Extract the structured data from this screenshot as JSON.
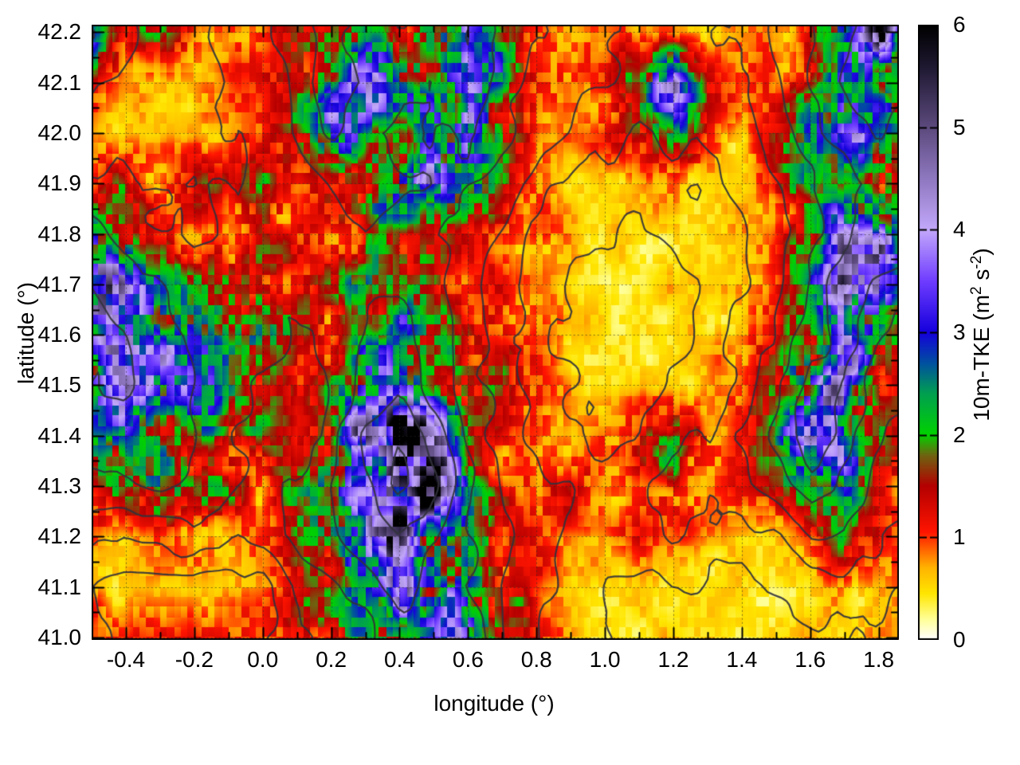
{
  "chart_data": {
    "type": "heatmap",
    "xlabel": "longitude (°)",
    "ylabel": "latitude (°)",
    "colorbar_label": "10m-TKE (m² s⁻²)",
    "colorbar_label_parts": {
      "p1": "10m-TKE (m",
      "sup1": "2",
      "p2": " s",
      "sup2": "-2",
      "p3": ")"
    },
    "xlim": [
      -0.5,
      1.859
    ],
    "ylim": [
      40.995,
      42.215
    ],
    "clim": [
      0,
      6
    ],
    "xticks": {
      "values": [
        -0.4,
        -0.2,
        0.0,
        0.2,
        0.4,
        0.6,
        0.8,
        1.0,
        1.2,
        1.4,
        1.6,
        1.8
      ],
      "labels": [
        "-0.4",
        "-0.2",
        "0.0",
        "0.2",
        "0.4",
        "0.6",
        "0.8",
        "1.0",
        "1.2",
        "1.4",
        "1.6",
        "1.8"
      ]
    },
    "xtick_minor_step": 0.1,
    "yticks": {
      "values": [
        41.0,
        41.1,
        41.2,
        41.3,
        41.4,
        41.5,
        41.6,
        41.7,
        41.8,
        41.9,
        42.0,
        42.1,
        42.2
      ],
      "labels": [
        "41.0",
        "41.1",
        "41.2",
        "41.3",
        "41.4",
        "41.5",
        "41.6",
        "41.7",
        "41.8",
        "41.9",
        "42.0",
        "42.1",
        "42.2"
      ]
    },
    "ytick_minor_step": 0.05,
    "cbticks": {
      "values": [
        0,
        1,
        2,
        3,
        4,
        5,
        6
      ],
      "labels": [
        "0",
        "1",
        "2",
        "3",
        "4",
        "5",
        "6"
      ]
    },
    "grid": {
      "x_major": true,
      "y_major": true,
      "style": "dotted"
    },
    "palette": [
      [
        0.0,
        "#ffffff"
      ],
      [
        0.2,
        "#ffff96"
      ],
      [
        0.45,
        "#ffe600"
      ],
      [
        0.7,
        "#ffb400"
      ],
      [
        0.9,
        "#ff5a00"
      ],
      [
        1.05,
        "#ff1400"
      ],
      [
        1.5,
        "#b40000"
      ],
      [
        1.8,
        "#6e6410"
      ],
      [
        2.0,
        "#00d200"
      ],
      [
        2.4,
        "#00a050"
      ],
      [
        2.7,
        "#0050a0"
      ],
      [
        3.0,
        "#1400dc"
      ],
      [
        3.5,
        "#6f3cff"
      ],
      [
        4.0,
        "#c3a8fa"
      ],
      [
        4.5,
        "#8f78c0"
      ],
      [
        5.0,
        "#5c4a7d"
      ],
      [
        5.6,
        "#1e1830"
      ],
      [
        6.0,
        "#000000"
      ]
    ],
    "tke_grid": {
      "lon_start": -0.5,
      "lon_step": 0.1,
      "lat_start": 42.2,
      "lat_step": -0.1,
      "values": [
        [
          3.2,
          1.0,
          2.2,
          1.0,
          1.0,
          1.2,
          1.6,
          2.0,
          2.2,
          1.4,
          1.8,
          3.6,
          2.0,
          1.0,
          0.8,
          0.7,
          0.8,
          0.7,
          0.6,
          0.8,
          0.8,
          1.2,
          2.4,
          4.4,
          2.0
        ],
        [
          1.0,
          0.7,
          0.6,
          0.7,
          0.8,
          1.0,
          1.6,
          2.4,
          3.2,
          2.6,
          2.0,
          3.0,
          2.2,
          1.2,
          1.0,
          1.0,
          2.2,
          3.6,
          1.2,
          0.7,
          1.0,
          1.6,
          3.2,
          2.2,
          1.4
        ],
        [
          0.7,
          0.5,
          0.5,
          0.6,
          0.7,
          1.0,
          1.6,
          3.0,
          2.2,
          2.0,
          2.6,
          3.2,
          1.6,
          1.0,
          0.7,
          1.0,
          1.6,
          2.2,
          1.0,
          0.6,
          1.2,
          2.2,
          3.2,
          2.6,
          1.6
        ],
        [
          1.0,
          1.6,
          1.0,
          1.6,
          1.0,
          1.6,
          1.0,
          1.6,
          2.2,
          2.8,
          3.2,
          2.6,
          1.6,
          0.7,
          0.5,
          0.5,
          0.6,
          1.0,
          0.6,
          0.5,
          1.0,
          2.0,
          1.6,
          2.0,
          1.2
        ],
        [
          3.2,
          1.6,
          1.0,
          0.7,
          1.0,
          1.6,
          1.0,
          1.0,
          1.6,
          1.6,
          1.6,
          1.0,
          1.0,
          1.0,
          0.6,
          0.5,
          0.5,
          0.5,
          0.5,
          0.6,
          1.0,
          1.6,
          3.2,
          3.6,
          2.0
        ],
        [
          5.2,
          3.8,
          2.0,
          1.6,
          2.0,
          1.6,
          1.6,
          1.6,
          2.0,
          2.0,
          1.6,
          1.0,
          1.0,
          0.7,
          0.5,
          0.5,
          0.5,
          0.5,
          0.5,
          0.6,
          1.0,
          2.0,
          3.8,
          3.0,
          1.6
        ],
        [
          3.8,
          3.4,
          3.0,
          2.4,
          2.0,
          2.4,
          1.6,
          1.2,
          2.0,
          2.4,
          2.0,
          1.6,
          1.0,
          1.0,
          0.6,
          0.5,
          0.5,
          0.5,
          0.5,
          1.0,
          1.0,
          2.0,
          3.4,
          2.0,
          1.2
        ],
        [
          3.0,
          3.4,
          3.0,
          2.4,
          2.0,
          1.6,
          1.0,
          1.6,
          3.0,
          3.4,
          2.0,
          1.6,
          1.6,
          1.0,
          0.6,
          0.5,
          0.5,
          0.5,
          0.6,
          1.0,
          1.6,
          3.4,
          3.8,
          1.6,
          1.0
        ],
        [
          2.0,
          2.4,
          2.0,
          2.0,
          1.6,
          1.6,
          1.0,
          2.0,
          4.2,
          5.0,
          3.8,
          1.6,
          1.0,
          1.0,
          0.6,
          1.0,
          1.6,
          2.0,
          1.0,
          1.0,
          2.0,
          4.0,
          3.0,
          1.6,
          1.0
        ],
        [
          1.6,
          2.0,
          2.4,
          2.0,
          1.6,
          1.0,
          1.6,
          2.4,
          3.0,
          5.2,
          5.0,
          2.0,
          1.0,
          1.0,
          1.6,
          1.0,
          1.0,
          1.6,
          1.0,
          1.0,
          1.6,
          2.0,
          2.4,
          1.0,
          0.8
        ],
        [
          1.0,
          0.6,
          1.0,
          1.0,
          0.6,
          1.0,
          1.6,
          2.0,
          3.0,
          4.2,
          2.6,
          2.0,
          1.6,
          1.0,
          0.6,
          0.6,
          1.0,
          1.0,
          0.6,
          0.5,
          0.6,
          1.0,
          1.6,
          1.0,
          0.8
        ],
        [
          0.6,
          0.5,
          0.5,
          0.5,
          0.5,
          0.6,
          1.0,
          1.6,
          2.6,
          3.6,
          3.0,
          2.6,
          1.6,
          1.0,
          0.6,
          0.5,
          0.5,
          0.5,
          0.5,
          0.5,
          0.5,
          0.6,
          0.7,
          0.7,
          0.7
        ],
        [
          1.6,
          1.0,
          1.0,
          1.0,
          1.0,
          1.0,
          1.6,
          1.6,
          2.0,
          2.0,
          2.6,
          3.0,
          1.6,
          1.0,
          0.6,
          0.5,
          0.5,
          0.5,
          0.5,
          0.5,
          0.5,
          0.6,
          0.6,
          0.7,
          0.8
        ]
      ]
    },
    "terrain_grid": {
      "lon_start": -0.5,
      "lon_step": 0.1,
      "lat_start": 42.2,
      "lat_step": -0.1,
      "values": [
        [
          800,
          700,
          600,
          650,
          700,
          750,
          900,
          1000,
          900,
          800,
          850,
          950,
          800,
          700,
          650,
          600,
          550,
          500,
          550,
          600,
          700,
          800,
          900,
          1000,
          1000
        ],
        [
          700,
          650,
          600,
          620,
          680,
          720,
          850,
          1050,
          950,
          850,
          800,
          900,
          750,
          650,
          600,
          550,
          500,
          520,
          480,
          550,
          650,
          800,
          950,
          1050,
          950
        ],
        [
          650,
          600,
          620,
          650,
          700,
          700,
          800,
          950,
          850,
          750,
          800,
          850,
          700,
          600,
          520,
          480,
          450,
          480,
          460,
          500,
          600,
          750,
          850,
          950,
          900
        ],
        [
          700,
          720,
          650,
          700,
          680,
          750,
          700,
          800,
          900,
          850,
          800,
          700,
          600,
          500,
          440,
          400,
          380,
          420,
          440,
          480,
          550,
          680,
          750,
          820,
          800
        ],
        [
          850,
          750,
          700,
          650,
          700,
          780,
          720,
          700,
          800,
          750,
          700,
          620,
          520,
          440,
          380,
          350,
          340,
          360,
          400,
          450,
          520,
          620,
          800,
          900,
          850
        ],
        [
          950,
          850,
          780,
          720,
          760,
          700,
          720,
          750,
          820,
          780,
          700,
          580,
          480,
          400,
          340,
          310,
          300,
          330,
          380,
          450,
          550,
          700,
          900,
          800,
          700
        ],
        [
          1000,
          950,
          850,
          780,
          720,
          760,
          650,
          700,
          800,
          850,
          750,
          600,
          480,
          400,
          330,
          300,
          290,
          320,
          380,
          470,
          580,
          750,
          850,
          700,
          600
        ],
        [
          950,
          1000,
          900,
          800,
          700,
          650,
          600,
          700,
          850,
          900,
          750,
          620,
          520,
          420,
          340,
          300,
          300,
          330,
          400,
          500,
          650,
          850,
          800,
          620,
          550
        ],
        [
          850,
          900,
          850,
          800,
          700,
          650,
          600,
          750,
          950,
          1100,
          900,
          650,
          520,
          430,
          360,
          330,
          350,
          420,
          450,
          550,
          700,
          900,
          750,
          580,
          500
        ],
        [
          750,
          800,
          850,
          800,
          700,
          620,
          680,
          800,
          900,
          1150,
          1000,
          700,
          550,
          480,
          450,
          400,
          420,
          500,
          480,
          550,
          650,
          750,
          650,
          520,
          450
        ],
        [
          600,
          550,
          600,
          650,
          550,
          600,
          700,
          750,
          850,
          950,
          800,
          700,
          600,
          500,
          420,
          380,
          420,
          460,
          420,
          400,
          450,
          550,
          550,
          450,
          400
        ],
        [
          450,
          400,
          380,
          400,
          380,
          420,
          550,
          650,
          750,
          850,
          780,
          700,
          580,
          480,
          400,
          350,
          330,
          350,
          330,
          320,
          350,
          400,
          420,
          380,
          350
        ],
        [
          500,
          420,
          400,
          380,
          400,
          420,
          550,
          600,
          650,
          700,
          720,
          750,
          580,
          450,
          380,
          330,
          300,
          300,
          290,
          280,
          300,
          320,
          350,
          320,
          300
        ]
      ]
    },
    "contour_levels": [
      350,
      450,
      560,
      680,
      800,
      950,
      1100
    ],
    "contour_color": "#32323c",
    "grid_line_color": "rgba(40,40,40,0.55)",
    "border_color": "#000000"
  }
}
